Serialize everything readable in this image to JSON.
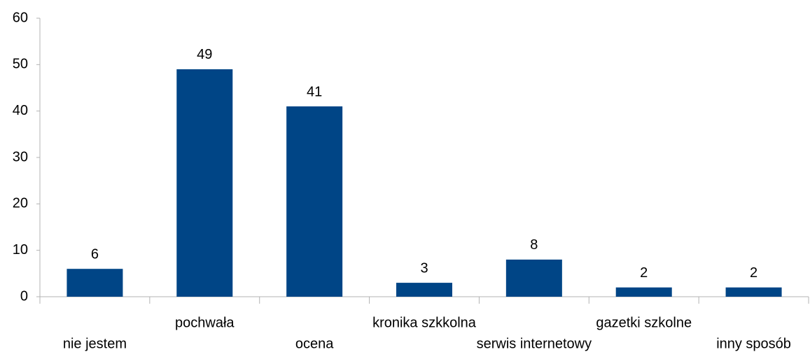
{
  "chart_data": {
    "type": "bar",
    "categories": [
      "nie jestem",
      "pochwała",
      "ocena",
      "kronika szkkolna",
      "serwis internetowy",
      "gazetki szkolne",
      "inny sposób"
    ],
    "values": [
      6,
      49,
      41,
      3,
      8,
      2,
      2
    ],
    "color": "#004586",
    "ylim": [
      0,
      60
    ],
    "yticks": [
      0,
      10,
      20,
      30,
      40,
      50,
      60
    ],
    "grid": false
  }
}
